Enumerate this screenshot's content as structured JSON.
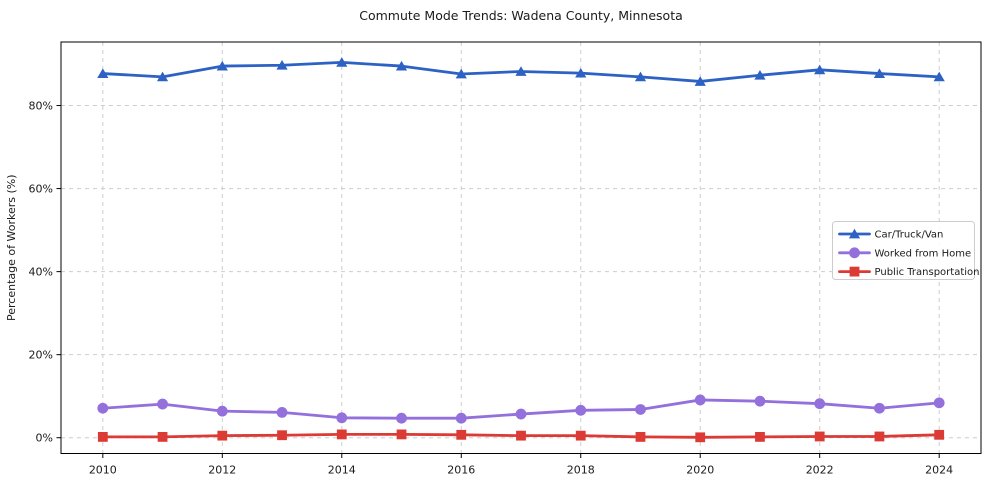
{
  "figure_title": "Commute Mode Trends: Wadena County, Minnesota",
  "chart_data": {
    "type": "line",
    "title": "Commute Mode Trends: Wadena County, Minnesota",
    "xlabel": "",
    "ylabel": "Percentage of Workers (%)",
    "x": [
      2010,
      2011,
      2012,
      2013,
      2014,
      2015,
      2016,
      2017,
      2018,
      2019,
      2020,
      2021,
      2022,
      2023,
      2024
    ],
    "xlim": [
      2009.3,
      2024.7
    ],
    "ylim": [
      -3.8,
      95.3
    ],
    "x_ticks": [
      2010,
      2012,
      2014,
      2016,
      2018,
      2020,
      2022,
      2024
    ],
    "x_tick_labels": [
      "2010",
      "2012",
      "2014",
      "2016",
      "2018",
      "2020",
      "2022",
      "2024"
    ],
    "y_ticks": [
      0,
      20,
      40,
      60,
      80
    ],
    "y_tick_labels": [
      "0%",
      "20%",
      "40%",
      "60%",
      "80%"
    ],
    "grid": true,
    "grid_style": "dashed",
    "grid_color": "#cdcdcd",
    "spine_color": "#000000",
    "legend_position": "center-right-inside",
    "legend_border_color": "#cccccc",
    "series": [
      {
        "name": "Car/Truck/Van",
        "color": "#2d62c4",
        "marker": "triangle",
        "values": [
          87.7,
          86.9,
          89.5,
          89.7,
          90.4,
          89.5,
          87.6,
          88.2,
          87.8,
          86.9,
          85.8,
          87.3,
          88.6,
          87.7,
          86.9
        ]
      },
      {
        "name": "Worked from Home",
        "color": "#9370db",
        "marker": "circle",
        "values": [
          7.1,
          8.1,
          6.4,
          6.1,
          4.8,
          4.7,
          4.7,
          5.7,
          6.6,
          6.8,
          9.1,
          8.8,
          8.2,
          7.1,
          8.4
        ]
      },
      {
        "name": "Public Transportation",
        "color": "#dc3a34",
        "marker": "square",
        "values": [
          0.2,
          0.2,
          0.5,
          0.6,
          0.8,
          0.8,
          0.7,
          0.5,
          0.5,
          0.2,
          0.1,
          0.2,
          0.3,
          0.3,
          0.7
        ]
      }
    ]
  }
}
